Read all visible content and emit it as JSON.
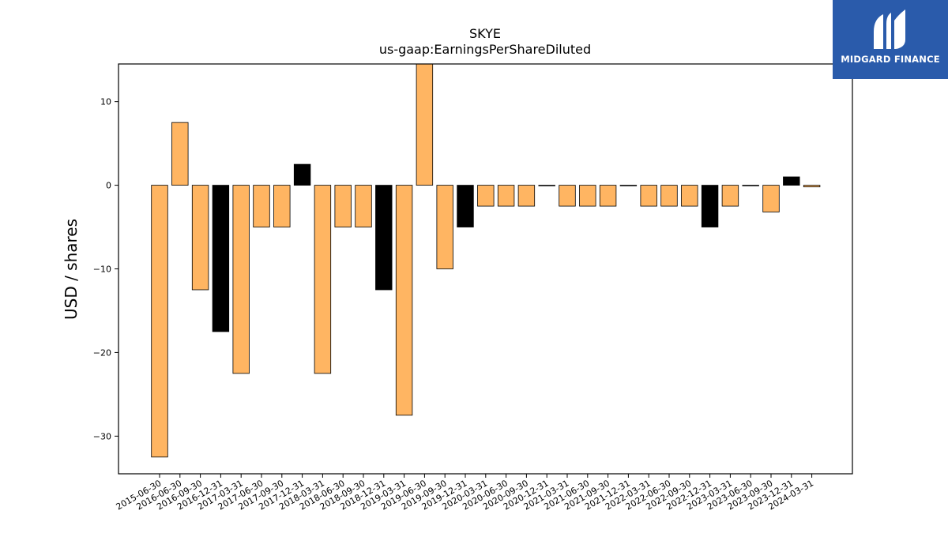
{
  "logo": {
    "text": "MIDGARD FINANCE",
    "icon": "midgard-logo-icon",
    "background": "#2a5bab"
  },
  "colors": {
    "positive_neg": "#ffb562",
    "highlight": "#000000",
    "edge": "#000000"
  },
  "chart_data": {
    "type": "bar",
    "title": "SKYE",
    "subtitle": "us-gaap:EarningsPerShareDiluted",
    "xlabel": "",
    "ylabel": "USD / shares",
    "ylim": [
      -34.5,
      14.5
    ],
    "yticks": [
      10,
      0,
      -10,
      -20,
      -30
    ],
    "ytick_labels": [
      "10",
      "0",
      "−10",
      "−20",
      "−30"
    ],
    "grid": false,
    "categories": [
      "2015-06-30",
      "2016-06-30",
      "2016-09-30",
      "2016-12-31",
      "2017-03-31",
      "2017-06-30",
      "2017-09-30",
      "2017-12-31",
      "2018-03-31",
      "2018-06-30",
      "2018-09-30",
      "2018-12-31",
      "2019-03-31",
      "2019-06-30",
      "2019-09-30",
      "2019-12-31",
      "2020-03-31",
      "2020-06-30",
      "2020-09-30",
      "2020-12-31",
      "2021-03-31",
      "2021-06-30",
      "2021-09-30",
      "2021-12-31",
      "2022-03-31",
      "2022-06-30",
      "2022-09-30",
      "2022-12-31",
      "2023-03-31",
      "2023-06-30",
      "2023-09-30",
      "2023-12-31",
      "2024-03-31"
    ],
    "values": [
      -32.5,
      7.5,
      -12.5,
      -17.5,
      -22.5,
      -5,
      -5,
      2.5,
      -22.5,
      -5,
      -5,
      -12.5,
      -27.5,
      15,
      -10,
      -5,
      -2.5,
      -2.5,
      -2.5,
      0,
      -2.5,
      -2.5,
      -2.5,
      0,
      -2.5,
      -2.5,
      -2.5,
      -5,
      -2.5,
      0,
      -3.2,
      1,
      -0.2
    ],
    "highlighted": [
      false,
      false,
      false,
      true,
      false,
      false,
      false,
      true,
      false,
      false,
      false,
      true,
      false,
      false,
      false,
      true,
      false,
      false,
      false,
      false,
      false,
      false,
      false,
      false,
      false,
      false,
      false,
      true,
      false,
      false,
      false,
      true,
      false
    ]
  }
}
